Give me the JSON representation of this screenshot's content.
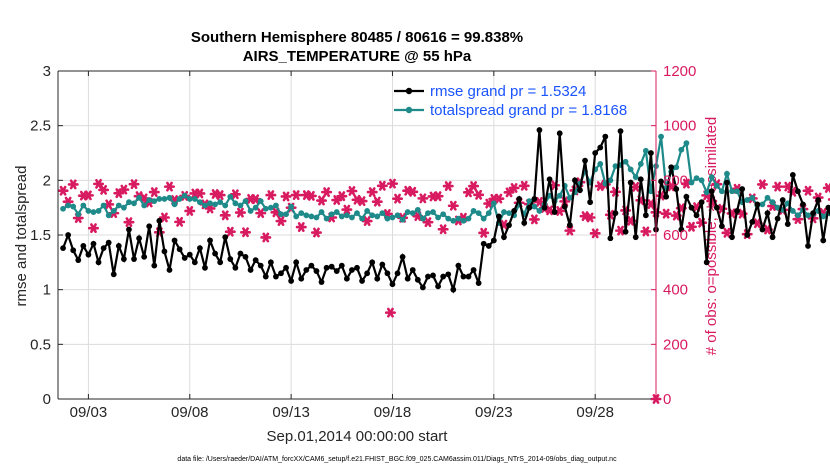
{
  "chart_data": {
    "type": "line",
    "title_line1": "Southern Hemisphere 80485 / 80616 = 99.838%",
    "title_line2": "AIRS_TEMPERATURE @ 55 hPa",
    "xlabel": "Sep.01,2014 00:00:00 start",
    "ylabel_left": "rmse and totalspread",
    "ylabel_right": "# of obs: o=possible; ∗=assimilated",
    "footer": "data file: /Users/raeder/DAI/ATM_forcXX/CAM6_setup/f.e21.FHIST_BGC.f09_025.CAM6assim.011/Diags_NTrS_2014-09/obs_diag_output.nc",
    "x_tick_labels": [
      "09/03",
      "09/08",
      "09/13",
      "09/18",
      "09/23",
      "09/28"
    ],
    "x_tick_days": [
      3,
      8,
      13,
      18,
      23,
      28
    ],
    "xlim_days": [
      1.5,
      31.0
    ],
    "ylim_left": [
      0,
      3
    ],
    "y_ticks_left": [
      "0",
      "0.5",
      "1",
      "1.5",
      "2",
      "2.5",
      "3"
    ],
    "ylim_right": [
      0,
      1200
    ],
    "y_ticks_right": [
      "0",
      "200",
      "400",
      "600",
      "800",
      "1000",
      "1200"
    ],
    "grid": true,
    "legend_location": "top-right",
    "colors": {
      "rmse": "#000000",
      "spread": "#1f8a8a",
      "obs": "#d81b60",
      "axis": "#262626",
      "legend_text": "#1a54ff"
    },
    "series": [
      {
        "name": "rmse grand pr = 1.5324",
        "key": "rmse",
        "start_day": 1.75,
        "step_days": 0.25,
        "values": [
          1.38,
          1.5,
          1.36,
          1.27,
          1.4,
          1.32,
          1.42,
          1.25,
          1.38,
          1.43,
          1.14,
          1.4,
          1.28,
          1.55,
          1.28,
          1.47,
          1.3,
          1.58,
          1.22,
          1.63,
          1.35,
          1.18,
          1.45,
          1.37,
          1.29,
          1.32,
          1.25,
          1.38,
          1.2,
          1.45,
          1.33,
          1.25,
          1.48,
          1.28,
          1.2,
          1.33,
          1.3,
          1.18,
          1.27,
          1.22,
          1.12,
          1.25,
          1.12,
          1.15,
          1.2,
          1.08,
          1.25,
          1.1,
          1.18,
          1.22,
          1.17,
          1.07,
          1.2,
          1.21,
          1.17,
          1.22,
          1.1,
          1.18,
          1.2,
          1.08,
          1.15,
          1.25,
          1.1,
          1.23,
          1.15,
          1.05,
          1.15,
          1.3,
          1.1,
          1.18,
          1.09,
          1.02,
          1.12,
          1.13,
          1.03,
          1.12,
          1.14,
          1.0,
          1.22,
          1.12,
          1.12,
          1.18,
          1.06,
          1.42,
          1.4,
          1.45,
          1.67,
          1.48,
          1.59,
          1.72,
          1.83,
          1.61,
          1.75,
          1.83,
          2.46,
          1.75,
          2.01,
          1.71,
          2.43,
          1.76,
          1.59,
          2.0,
          1.91,
          2.18,
          1.8,
          2.25,
          2.3,
          2.4,
          1.47,
          1.7,
          2.45,
          1.53,
          1.98,
          1.48,
          2.01,
          1.68,
          2.25,
          1.55,
          1.99,
          1.85,
          2.12,
          1.92,
          1.55,
          1.85,
          1.75,
          1.68,
          1.8,
          1.25,
          1.9,
          1.75,
          1.58,
          1.98,
          1.48,
          1.72,
          1.92,
          1.5,
          1.62,
          1.78,
          1.55,
          1.7,
          1.48,
          1.65,
          1.82,
          1.6,
          2.05,
          1.9,
          1.78,
          1.4,
          1.7,
          1.82,
          1.45,
          1.75,
          1.6,
          1.72,
          1.62,
          1.82,
          1.48,
          1.56,
          1.7,
          1.28,
          1.65,
          1.17,
          1.62
        ]
      },
      {
        "name": "totalspread grand pr = 1.8168",
        "key": "spread",
        "start_day": 1.75,
        "step_days": 0.25,
        "values": [
          1.74,
          1.77,
          1.76,
          1.69,
          1.77,
          1.72,
          1.71,
          1.72,
          1.77,
          1.68,
          1.72,
          1.77,
          1.75,
          1.8,
          1.79,
          1.84,
          1.77,
          1.82,
          1.81,
          1.83,
          1.83,
          1.84,
          1.78,
          1.83,
          1.86,
          1.83,
          1.83,
          1.8,
          1.77,
          1.79,
          1.78,
          1.8,
          1.77,
          1.85,
          1.79,
          1.77,
          1.81,
          1.72,
          1.75,
          1.81,
          1.74,
          1.75,
          1.77,
          1.69,
          1.69,
          1.76,
          1.67,
          1.7,
          1.68,
          1.67,
          1.66,
          1.71,
          1.65,
          1.69,
          1.71,
          1.67,
          1.68,
          1.66,
          1.7,
          1.65,
          1.72,
          1.68,
          1.67,
          1.7,
          1.65,
          1.66,
          1.68,
          1.64,
          1.71,
          1.7,
          1.73,
          1.65,
          1.7,
          1.71,
          1.66,
          1.69,
          1.65,
          1.63,
          1.65,
          1.63,
          1.65,
          1.72,
          1.7,
          1.65,
          1.7,
          1.79,
          1.61,
          1.71,
          1.7,
          1.68,
          1.78,
          1.69,
          1.81,
          1.76,
          1.72,
          1.78,
          1.86,
          1.81,
          1.86,
          1.95,
          1.84,
          1.89,
          1.97,
          2.08,
          1.98,
          2.1,
          2.15,
          1.97,
          2.0,
          2.13,
          2.14,
          2.17,
          2.1,
          2.03,
          2.15,
          2.27,
          1.9,
          2.13,
          2.4,
          1.93,
          2.08,
          2.12,
          2.28,
          2.34,
          1.98,
          2.02,
          2.0,
          1.89,
          2.03,
          1.95,
          1.9,
          2.06,
          1.9,
          1.9,
          1.8,
          1.82,
          1.84,
          1.77,
          1.78,
          1.84,
          1.8,
          1.75,
          1.73,
          1.79,
          1.72,
          1.68,
          1.73,
          1.68,
          1.69,
          1.72,
          1.67,
          1.7,
          1.65,
          1.67,
          1.64,
          1.63,
          1.6,
          1.7,
          1.63,
          1.66,
          1.7,
          1.65,
          1.63,
          1.67,
          1.68,
          1.67
        ]
      },
      {
        "name": "obs assimilated",
        "key": "obs",
        "start_day": 1.75,
        "step_days": 0.25,
        "values": [
          762,
          722,
          785,
          662,
          744,
          745,
          625,
          787,
          765,
          712,
          680,
          753,
          766,
          647,
          786,
          742,
          734,
          719,
          757,
          610,
          664,
          777,
          728,
          648,
          743,
          688,
          752,
          752,
          712,
          697,
          750,
          746,
          672,
          612,
          749,
          682,
          610,
          732,
          731,
          680,
          591,
          746,
          683,
          651,
          741,
          700,
          746,
          629,
          746,
          743,
          609,
          726,
          757,
          664,
          728,
          742,
          693,
          761,
          729,
          724,
          651,
          757,
          722,
          780,
          677,
          788,
          733,
          663,
          762,
          758,
          669,
          734,
          647,
          741,
          742,
          621,
          779,
          707,
          653,
          663,
          756,
          779,
          747,
          608,
          715,
          732,
          733,
          638,
          756,
          772,
          718,
          780,
          713,
          657,
          721,
          699,
          690,
          782,
          688,
          723,
          616,
          763,
          793,
          669,
          664,
          606,
          779,
          785,
          674,
          758,
          616,
          690,
          652,
          776,
          727,
          613,
          713,
          683,
          744,
          678,
          778,
          671,
          698,
          788,
          630,
          702,
          645,
          745,
          724,
          786,
          696,
          608,
          679,
          769,
          678,
          603,
          734,
          643,
          785,
          620,
          706,
          777,
          692,
          777,
          758,
          658,
          695,
          762,
          661,
          737,
          681,
          772,
          730,
          740,
          715,
          698,
          770,
          680,
          735,
          693,
          651,
          724,
          620,
          749,
          754,
          740,
          683,
          750,
          685,
          766
        ],
        "extra_points": [
          {
            "day": 17.9,
            "value": 316
          },
          {
            "day": 31.0,
            "value": 0
          }
        ]
      }
    ]
  }
}
